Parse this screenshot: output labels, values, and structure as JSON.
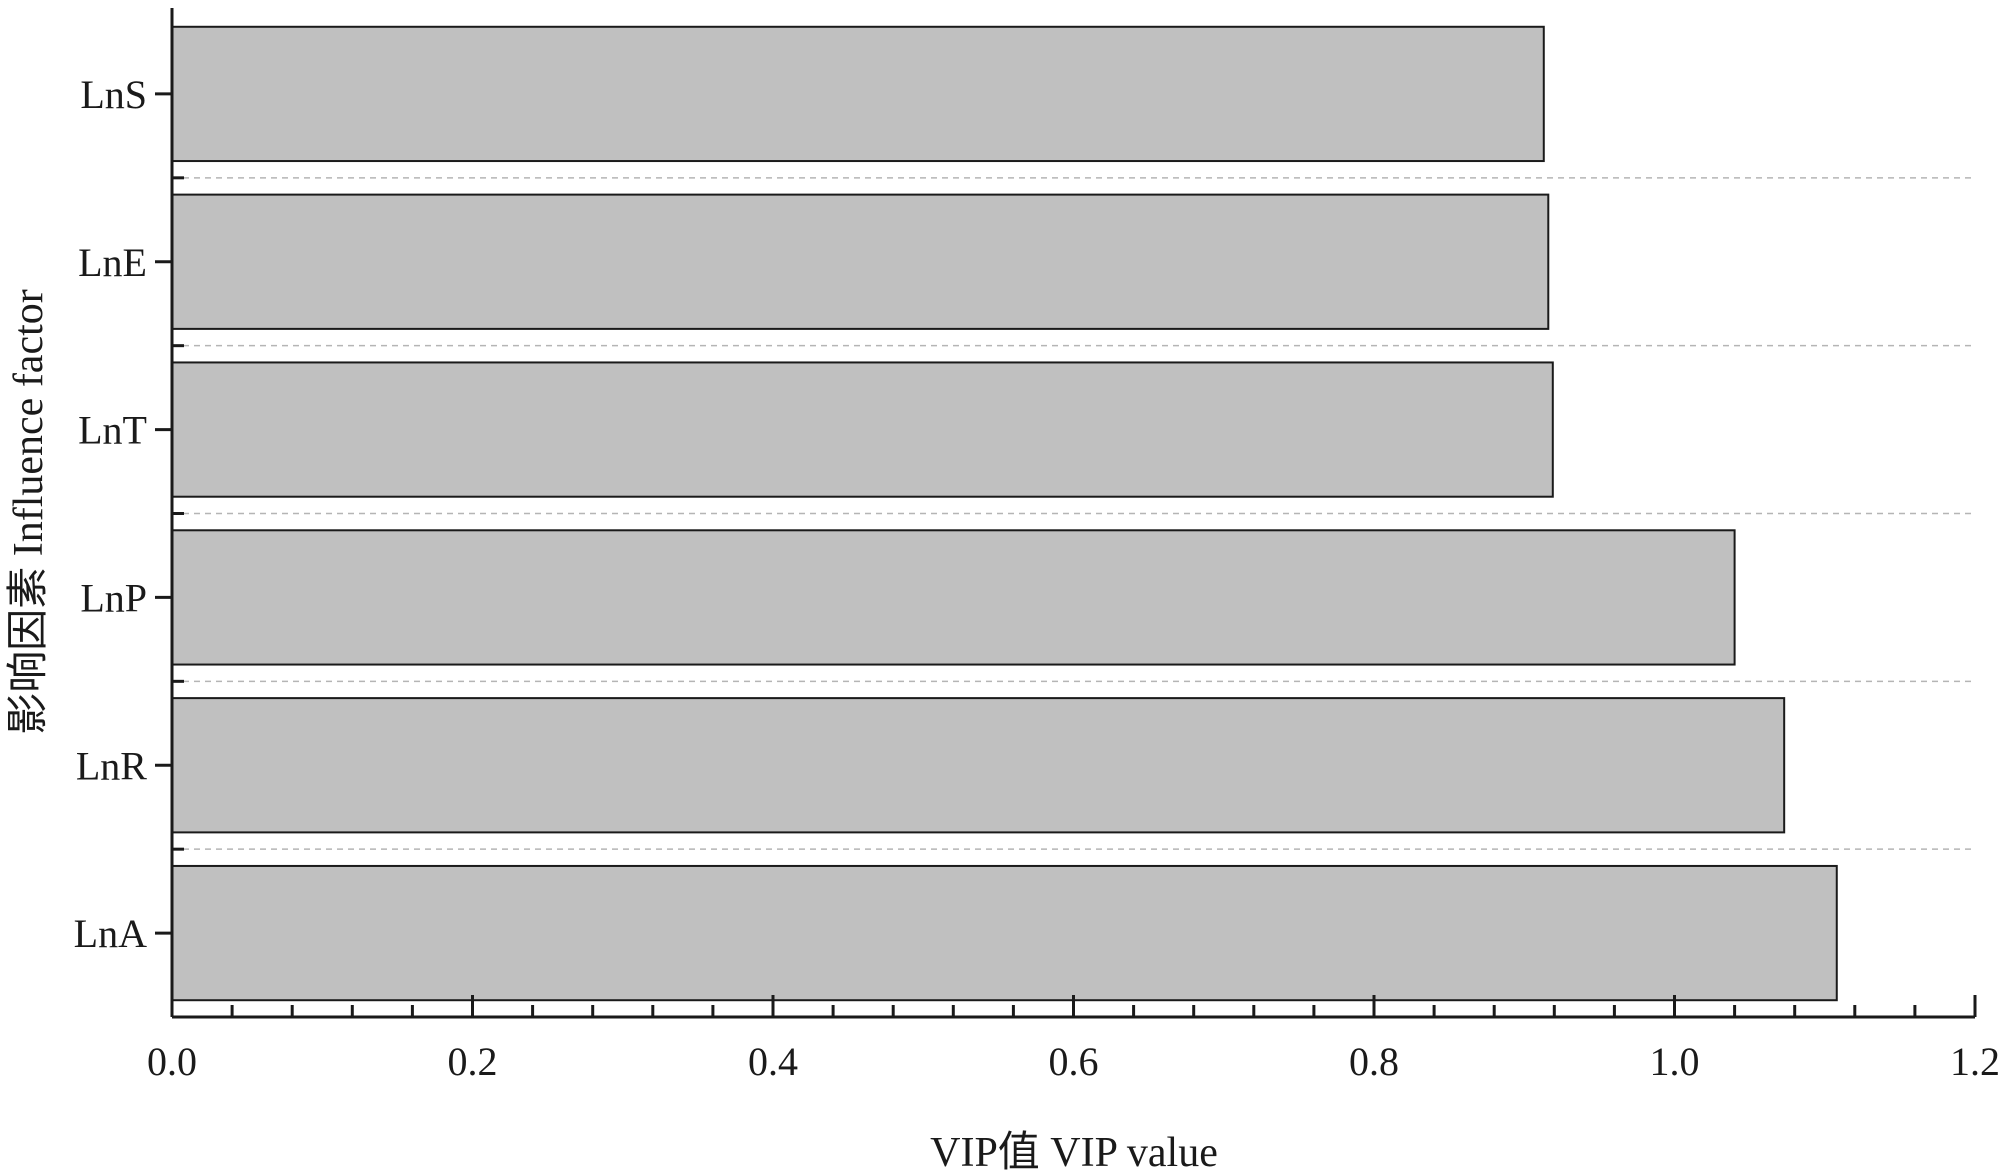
{
  "chart_data": {
    "type": "bar",
    "orientation": "horizontal",
    "categories": [
      "LnS",
      "LnE",
      "LnT",
      "LnP",
      "LnR",
      "LnA"
    ],
    "values": [
      0.913,
      0.916,
      0.919,
      1.04,
      1.073,
      1.108
    ],
    "xlabel": "VIP值 VIP value",
    "ylabel": "影响因素 Influence factor",
    "xlim": [
      0,
      1.2
    ],
    "x_ticks": [
      "0.0",
      "0.2",
      "0.4",
      "0.6",
      "0.8",
      "1.0",
      "1.2"
    ],
    "x_tick_values": [
      0,
      0.2,
      0.4,
      0.6,
      0.8,
      1.0,
      1.2
    ],
    "x_minor_step": 0.04,
    "grid": false,
    "legend": "none",
    "bar_color": "#c0c0c0",
    "separator_color": "#b5b5b5"
  }
}
